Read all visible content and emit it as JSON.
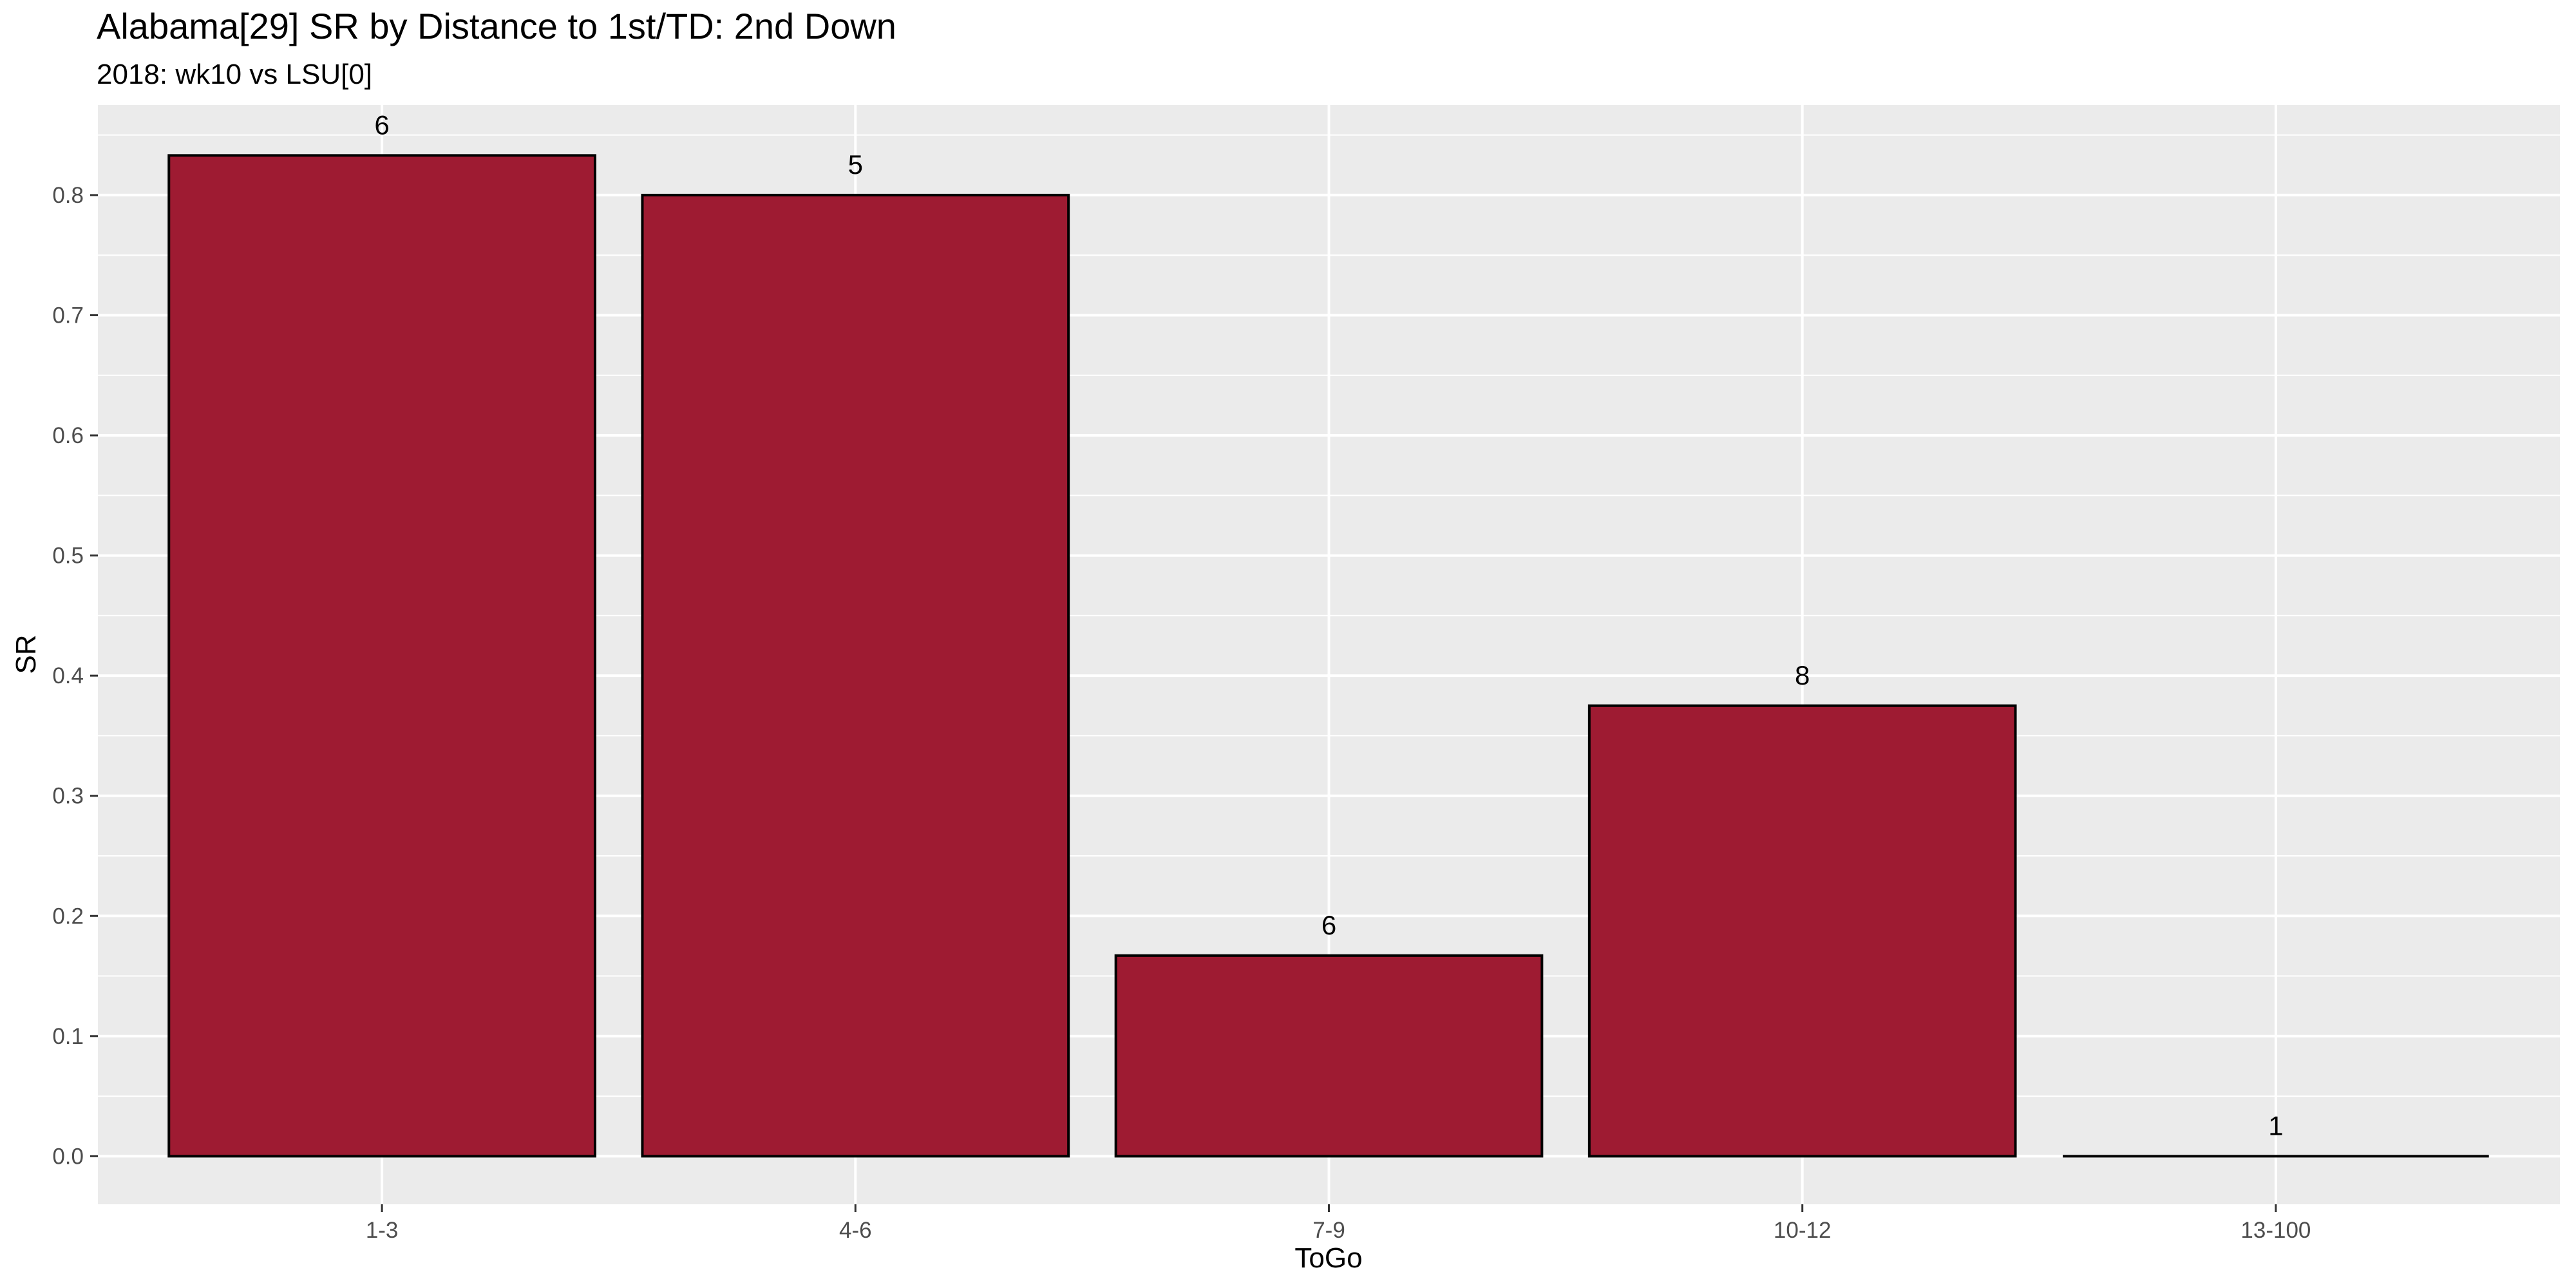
{
  "chart_data": {
    "type": "bar",
    "title": "Alabama[29] SR by Distance to 1st/TD: 2nd Down",
    "subtitle": "2018: wk10 vs LSU[0]",
    "xlabel": "ToGo",
    "ylabel": "SR",
    "categories": [
      "1-3",
      "4-6",
      "7-9",
      "10-12",
      "13-100"
    ],
    "values": [
      0.833,
      0.8,
      0.167,
      0.375,
      0.0
    ],
    "bar_labels": [
      "6",
      "5",
      "6",
      "8",
      "1"
    ],
    "yticks": [
      0.0,
      0.1,
      0.2,
      0.3,
      0.4,
      0.5,
      0.6,
      0.7,
      0.8
    ],
    "ytick_labels": [
      "0.0",
      "0.1",
      "0.2",
      "0.3",
      "0.4",
      "0.5",
      "0.6",
      "0.7",
      "0.8"
    ],
    "ylim": [
      -0.04,
      0.875
    ],
    "grid": true,
    "legend": "none",
    "colors": {
      "bar_fill": "#9E1B32",
      "bar_outline": "#000000",
      "panel_background": "#EBEBEB",
      "grid": "#FFFFFF"
    }
  }
}
